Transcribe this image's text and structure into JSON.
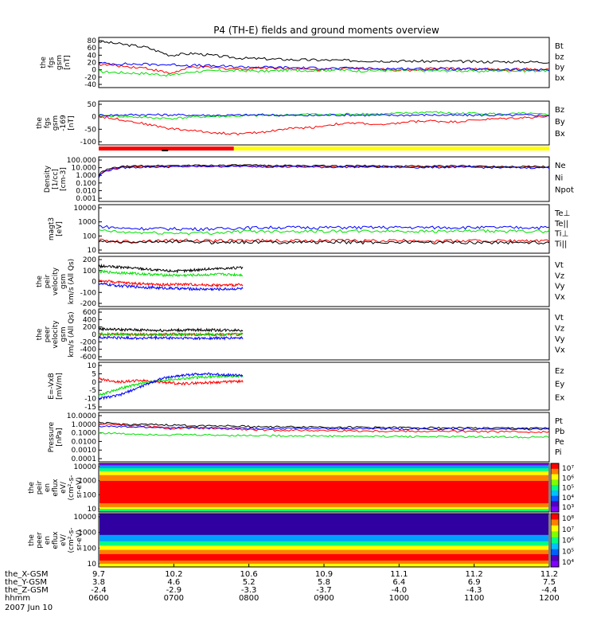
{
  "title": "P4 (TH-E) fields and ground moments overview",
  "date_label": "2007 Jun 10",
  "colors": {
    "black": "#000000",
    "red": "#ff0000",
    "green": "#00e000",
    "blue": "#0000ff",
    "yellow": "#ffff00"
  },
  "chart_data": [
    {
      "type": "line",
      "id": "fgs",
      "ylabel": [
        "the",
        "fgs",
        "gsm",
        "[nT]"
      ],
      "yticks": [
        "80",
        "60",
        "40",
        "20",
        "0",
        "-20",
        "-40"
      ],
      "ylim": [
        -40,
        80
      ],
      "series": [
        {
          "name": "Bt",
          "color": "black",
          "values": [
            78,
            70,
            62,
            40,
            45,
            38,
            32,
            30,
            28,
            27,
            26,
            25,
            24,
            24,
            23,
            23,
            22,
            22,
            22,
            21
          ]
        },
        {
          "name": "bz",
          "color": "red",
          "values": [
            15,
            10,
            5,
            -10,
            8,
            5,
            2,
            6,
            4,
            0,
            3,
            5,
            2,
            -2,
            4,
            3,
            2,
            0,
            2,
            0
          ]
        },
        {
          "name": "by",
          "color": "green",
          "values": [
            -5,
            -8,
            -10,
            -15,
            -5,
            -3,
            -2,
            -4,
            -1,
            -2,
            0,
            -3,
            -2,
            -1,
            -3,
            -2,
            -4,
            -2,
            -3,
            -2
          ]
        },
        {
          "name": "bx",
          "color": "blue",
          "values": [
            18,
            16,
            15,
            14,
            12,
            10,
            8,
            7,
            6,
            5,
            4,
            4,
            3,
            3,
            2,
            2,
            1,
            1,
            0,
            0
          ]
        }
      ]
    },
    {
      "type": "line",
      "id": "fgs169",
      "ylabel": [
        "the",
        "fgs",
        "gsm",
        "-169",
        "[nT]"
      ],
      "yticks": [
        "50",
        "0",
        "-50",
        "-100"
      ],
      "ylim": [
        -120,
        50
      ],
      "series": [
        {
          "name": "Bz",
          "color": "red",
          "values": [
            -5,
            -20,
            -40,
            -60,
            -70,
            -80,
            -85,
            -75,
            -60,
            -55,
            -40,
            -35,
            -45,
            -30,
            -25,
            -30,
            -20,
            -15,
            -10,
            -5
          ]
        },
        {
          "name": "By",
          "color": "green",
          "values": [
            0,
            -5,
            -10,
            -15,
            -8,
            -5,
            -3,
            0,
            2,
            5,
            3,
            8,
            5,
            10,
            15,
            8,
            10,
            5,
            8,
            2
          ]
        },
        {
          "name": "Bx",
          "color": "blue",
          "values": [
            0,
            2,
            3,
            2,
            1,
            0,
            1,
            2,
            0,
            -1,
            2,
            1,
            0,
            1,
            2,
            0,
            1,
            0,
            1,
            0
          ]
        }
      ]
    },
    {
      "type": "line",
      "id": "density",
      "scale": "log",
      "ylabel": [
        "Density",
        "[1/cc]",
        "[cm-3]"
      ],
      "yticks": [
        "100.000",
        "10.000",
        "1.000",
        "0.100",
        "0.010",
        "0.001"
      ],
      "ylim": [
        0.001,
        100
      ],
      "series": [
        {
          "name": "Ne",
          "color": "red",
          "values": [
            0.8,
            12,
            15,
            16,
            17,
            18,
            18,
            17,
            16,
            15,
            14,
            15,
            14,
            13,
            13,
            14,
            13,
            12,
            12,
            11
          ]
        },
        {
          "name": "Ni",
          "color": "black",
          "values": [
            1,
            14,
            18,
            19,
            20,
            21,
            21,
            20,
            19,
            18,
            17,
            18,
            17,
            16,
            16,
            17,
            16,
            15,
            15,
            14
          ]
        },
        {
          "name": "Npot",
          "color": "blue",
          "values": [
            0.5,
            10,
            12,
            13,
            14,
            15,
            15,
            14,
            13,
            12,
            12,
            13,
            12,
            11,
            11,
            12,
            11,
            10,
            10,
            10
          ]
        }
      ]
    },
    {
      "type": "line",
      "id": "temp",
      "scale": "log",
      "ylabel": [
        "magt3",
        "[eV]"
      ],
      "yticks": [
        "10000",
        "1000",
        "100",
        "10"
      ],
      "ylim": [
        10,
        10000
      ],
      "series": [
        {
          "name": "Te⊥",
          "color": "red",
          "values": [
            50,
            40,
            45,
            50,
            48,
            45,
            50,
            48,
            45,
            50,
            48,
            47,
            45,
            48,
            46,
            45,
            47,
            46,
            45,
            44
          ]
        },
        {
          "name": "Te||",
          "color": "black",
          "values": [
            40,
            35,
            38,
            40,
            38,
            36,
            38,
            37,
            36,
            38,
            37,
            36,
            35,
            37,
            36,
            35,
            36,
            35,
            35,
            34
          ]
        },
        {
          "name": "Ti⊥",
          "color": "blue",
          "values": [
            500,
            350,
            340,
            330,
            320,
            330,
            380,
            400,
            410,
            400,
            405,
            400,
            410,
            405,
            400,
            410,
            405,
            400,
            405,
            400
          ]
        },
        {
          "name": "Ti||",
          "color": "green",
          "values": [
            250,
            180,
            170,
            160,
            165,
            170,
            210,
            220,
            225,
            220,
            222,
            218,
            225,
            220,
            218,
            222,
            220,
            218,
            220,
            218
          ]
        }
      ]
    },
    {
      "type": "line",
      "id": "peir_vel",
      "ylabel": [
        "the",
        "peir",
        "velocity",
        "gsm",
        "km/s (All Qs)"
      ],
      "yticks": [
        "200",
        "100",
        "0",
        "-100",
        "-200"
      ],
      "ylim": [
        -200,
        200
      ],
      "series": [
        {
          "name": "Vt",
          "color": "black",
          "values": [
            140,
            130,
            120,
            100,
            95,
            110,
            120,
            125
          ]
        },
        {
          "name": "Vz",
          "color": "red",
          "values": [
            10,
            -10,
            -20,
            -30,
            -25,
            -30,
            -35,
            -30
          ]
        },
        {
          "name": "Vy",
          "color": "green",
          "values": [
            90,
            80,
            70,
            60,
            55,
            60,
            65,
            60
          ]
        },
        {
          "name": "Vx",
          "color": "blue",
          "values": [
            -20,
            -40,
            -50,
            -60,
            -65,
            -70,
            -70,
            -65
          ]
        }
      ]
    },
    {
      "type": "line",
      "id": "peer_vel",
      "ylabel": [
        "the",
        "peer",
        "velocity",
        "gsm",
        "km/s (All Qs)"
      ],
      "yticks": [
        "600",
        "400",
        "200",
        "0",
        "-200",
        "-400",
        "-600"
      ],
      "ylim": [
        -600,
        600
      ],
      "series": [
        {
          "name": "Vt",
          "color": "black",
          "values": [
            150,
            130,
            120,
            110,
            115,
            120,
            115,
            118
          ]
        },
        {
          "name": "Vz",
          "color": "red",
          "values": [
            0,
            5,
            -5,
            0,
            3,
            -2,
            0,
            2
          ]
        },
        {
          "name": "Vy",
          "color": "green",
          "values": [
            10,
            5,
            0,
            -5,
            0,
            5,
            0,
            3
          ]
        },
        {
          "name": "Vx",
          "color": "blue",
          "values": [
            -80,
            -90,
            -100,
            -95,
            -100,
            -105,
            -100,
            -98
          ]
        }
      ]
    },
    {
      "type": "line",
      "id": "efield",
      "ylabel": [
        "E=-VxB",
        "[mV/m]"
      ],
      "yticks": [
        "10",
        "5",
        "0",
        "-5",
        "-10",
        "-15"
      ],
      "ylim": [
        -15,
        10
      ],
      "series": [
        {
          "name": "Ez",
          "color": "red",
          "values": [
            2,
            0,
            1,
            0,
            -1,
            -0.5,
            0,
            0.5
          ]
        },
        {
          "name": "Ey",
          "color": "green",
          "values": [
            -8,
            -4,
            -1,
            1,
            2,
            3,
            3.5,
            3.5
          ]
        },
        {
          "name": "Ex",
          "color": "blue",
          "values": [
            -10,
            -8,
            -3,
            2,
            4,
            5,
            4.5,
            4
          ]
        }
      ]
    },
    {
      "type": "line",
      "id": "pressure",
      "scale": "log",
      "ylabel": [
        "Pressure",
        "[nPa]"
      ],
      "yticks": [
        "10.0000",
        "1.0000",
        "0.1000",
        "0.0100",
        "0.0010",
        "0.0001"
      ],
      "ylim": [
        0.0001,
        10
      ],
      "series": [
        {
          "name": "Pt",
          "color": "black",
          "values": [
            1.5,
            1.0,
            0.9,
            0.8,
            0.7,
            0.7,
            0.6,
            0.5,
            0.5,
            0.5,
            0.45,
            0.45,
            0.42,
            0.4,
            0.4,
            0.38,
            0.36,
            0.35,
            0.35,
            0.34
          ]
        },
        {
          "name": "Pb",
          "color": "red",
          "values": [
            1.2,
            0.8,
            0.6,
            0.3,
            0.4,
            0.3,
            0.25,
            0.2,
            0.2,
            0.19,
            0.18,
            0.17,
            0.16,
            0.16,
            0.15,
            0.15,
            0.14,
            0.14,
            0.13,
            0.13
          ]
        },
        {
          "name": "Pe",
          "color": "green",
          "values": [
            0.1,
            0.08,
            0.07,
            0.06,
            0.06,
            0.055,
            0.05,
            0.05,
            0.045,
            0.045,
            0.042,
            0.04,
            0.04,
            0.038,
            0.037,
            0.036,
            0.035,
            0.034,
            0.033,
            0.032
          ]
        },
        {
          "name": "Pi",
          "color": "blue",
          "values": [
            0.6,
            0.5,
            0.45,
            0.4,
            0.38,
            0.36,
            0.34,
            0.33,
            0.32,
            0.32,
            0.31,
            0.3,
            0.3,
            0.29,
            0.29,
            0.28,
            0.28,
            0.27,
            0.27,
            0.27
          ]
        }
      ]
    },
    {
      "type": "heatmap",
      "id": "peir_eflux",
      "ylabel": [
        "the",
        "peir",
        "en",
        "eflux",
        "eV/",
        "(cm²-s-",
        "sr-eV)"
      ],
      "yticks": [
        "10000",
        "1000",
        "100",
        "10"
      ],
      "colorbar_ticks": [
        "10⁷",
        "10⁶",
        "10⁵",
        "10⁴",
        "10³"
      ]
    },
    {
      "type": "heatmap",
      "id": "peer_eflux",
      "ylabel": [
        "the",
        "peer",
        "en",
        "eflux",
        "eV/",
        "(cm²-s-",
        "sr-eV)"
      ],
      "yticks": [
        "10000",
        "1000",
        "100",
        "10"
      ],
      "colorbar_ticks": [
        "10⁸",
        "10⁷",
        "10⁶",
        "10⁵",
        "10⁴"
      ]
    }
  ],
  "xaxis": {
    "row_labels": [
      "the_X-GSM",
      "the_Y-GSM",
      "the_Z-GSM",
      "hhmm"
    ],
    "ticks": [
      {
        "x": "9.7",
        "y": "3.8",
        "z": "-2.4",
        "hhmm": "0600"
      },
      {
        "x": "10.2",
        "y": "4.6",
        "z": "-2.9",
        "hhmm": "0700"
      },
      {
        "x": "10.6",
        "y": "5.2",
        "z": "-3.3",
        "hhmm": "0800"
      },
      {
        "x": "10.9",
        "y": "5.8",
        "z": "-3.7",
        "hhmm": "0900"
      },
      {
        "x": "11.1",
        "y": "6.4",
        "z": "-4.0",
        "hhmm": "1000"
      },
      {
        "x": "11.2",
        "y": "6.9",
        "z": "-4.3",
        "hhmm": "1100"
      },
      {
        "x": "11.2",
        "y": "7.5",
        "z": "-4.4",
        "hhmm": "1200"
      }
    ]
  }
}
